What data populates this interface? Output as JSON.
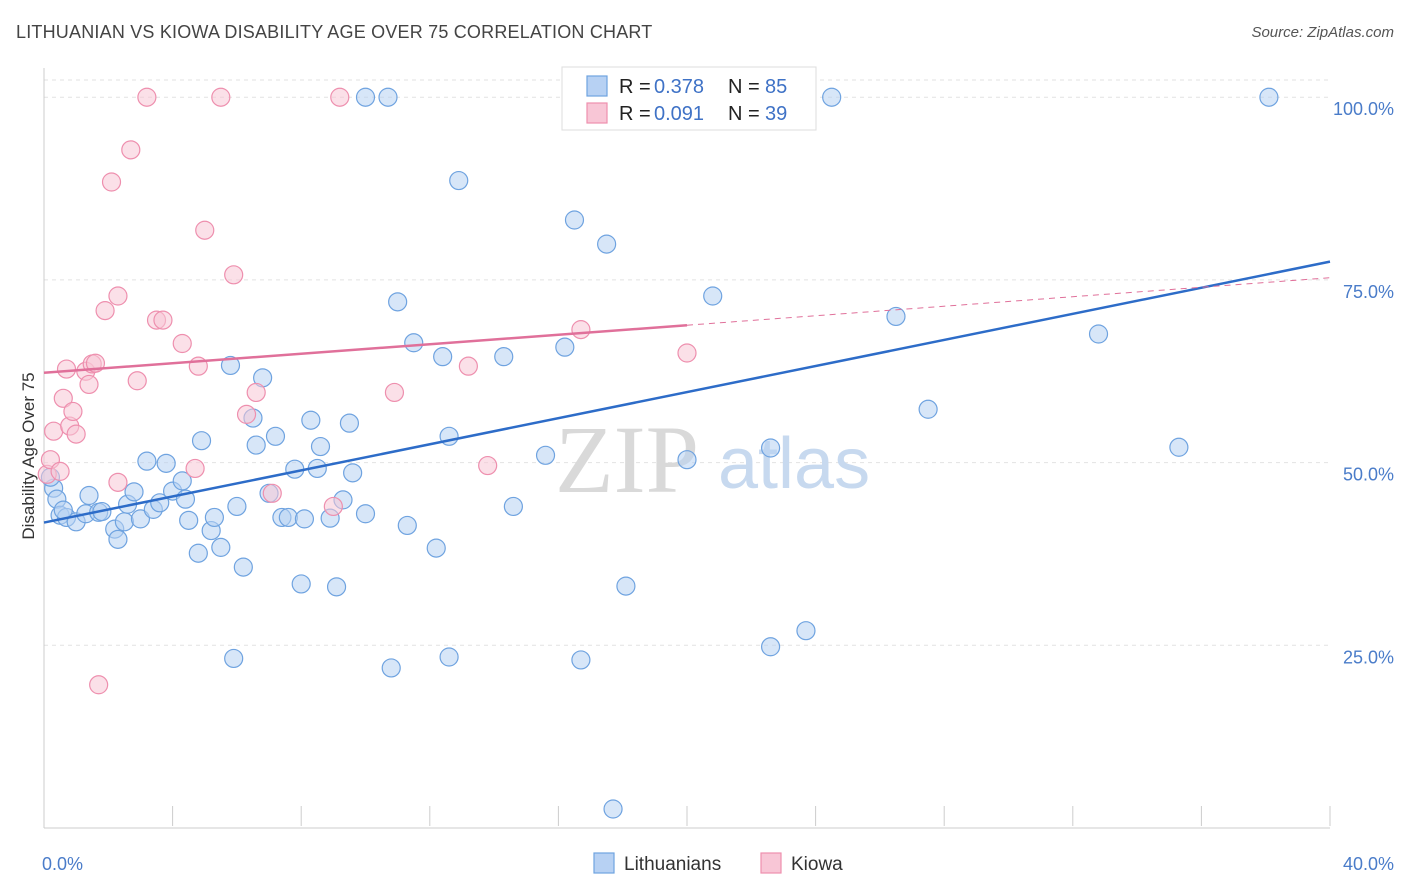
{
  "header": {
    "title": "LITHUANIAN VS KIOWA DISABILITY AGE OVER 75 CORRELATION CHART",
    "source": "Source: ZipAtlas.com"
  },
  "colors": {
    "blue": "#6fa3e0",
    "blue_fill": "#b7d1f3",
    "blue_line": "#2d6cc8",
    "pink": "#ee8fae",
    "pink_fill": "#f8c6d6",
    "pink_line": "#e0709a",
    "axis_text": "#4a7cc9"
  },
  "watermark": {
    "zip": "ZIP",
    "atlas": "atlas"
  },
  "chart_data": {
    "type": "scatter",
    "title": "LITHUANIAN VS KIOWA DISABILITY AGE OVER 75 CORRELATION CHART",
    "xlabel": "",
    "ylabel": "Disability Age Over 75",
    "xlim": [
      0,
      40
    ],
    "ylim": [
      0,
      104
    ],
    "x_tick_labels": [
      "0.0%",
      "40.0%"
    ],
    "y_ticks": [
      25,
      50,
      75,
      100
    ],
    "y_tick_labels": [
      "25.0%",
      "50.0%",
      "75.0%",
      "100.0%"
    ],
    "grid": true,
    "legend_position": "top-center",
    "stats": [
      {
        "r_label": "R = ",
        "r": "0.378",
        "n_label": "N = ",
        "n": "85"
      },
      {
        "r_label": "R = ",
        "r": "0.091",
        "n_label": "N = ",
        "n": "39"
      }
    ],
    "series": [
      {
        "name": "Lithuanians",
        "color": "#6fa3e0",
        "trend": {
          "x0": 0,
          "y0": 41.8,
          "x1": 40,
          "y1": 77.5
        },
        "points": [
          [
            0.3,
            46.5
          ],
          [
            0.4,
            45.0
          ],
          [
            0.5,
            42.8
          ],
          [
            0.7,
            42.5
          ],
          [
            1.0,
            41.9
          ],
          [
            1.3,
            43.0
          ],
          [
            1.4,
            45.5
          ],
          [
            1.7,
            43.2
          ],
          [
            1.8,
            43.3
          ],
          [
            2.2,
            40.9
          ],
          [
            2.3,
            39.5
          ],
          [
            2.5,
            41.9
          ],
          [
            2.6,
            44.3
          ],
          [
            2.8,
            46.0
          ],
          [
            3.0,
            42.3
          ],
          [
            3.2,
            50.2
          ],
          [
            3.4,
            43.6
          ],
          [
            3.6,
            44.5
          ],
          [
            3.8,
            49.9
          ],
          [
            4.0,
            46.1
          ],
          [
            4.3,
            47.5
          ],
          [
            4.4,
            45.0
          ],
          [
            4.5,
            42.1
          ],
          [
            4.8,
            37.6
          ],
          [
            4.9,
            53.0
          ],
          [
            5.2,
            40.7
          ],
          [
            5.3,
            42.5
          ],
          [
            5.5,
            38.4
          ],
          [
            5.8,
            63.3
          ],
          [
            5.9,
            23.2
          ],
          [
            6.0,
            44.0
          ],
          [
            6.2,
            35.7
          ],
          [
            6.5,
            56.1
          ],
          [
            6.6,
            52.4
          ],
          [
            6.8,
            61.6
          ],
          [
            7.0,
            45.8
          ],
          [
            7.2,
            53.6
          ],
          [
            7.4,
            42.5
          ],
          [
            7.6,
            42.5
          ],
          [
            7.8,
            49.1
          ],
          [
            8.0,
            33.4
          ],
          [
            8.1,
            42.3
          ],
          [
            8.3,
            55.8
          ],
          [
            8.5,
            49.2
          ],
          [
            8.6,
            52.2
          ],
          [
            8.9,
            42.4
          ],
          [
            9.1,
            33.0
          ],
          [
            9.3,
            44.9
          ],
          [
            9.5,
            55.4
          ],
          [
            9.6,
            48.6
          ],
          [
            10.0,
            43.0
          ],
          [
            10.0,
            100
          ],
          [
            10.7,
            100
          ],
          [
            10.8,
            21.9
          ],
          [
            11.0,
            72.0
          ],
          [
            11.5,
            66.4
          ],
          [
            11.3,
            41.4
          ],
          [
            12.2,
            38.3
          ],
          [
            12.4,
            64.5
          ],
          [
            12.6,
            53.6
          ],
          [
            12.6,
            23.4
          ],
          [
            12.9,
            88.6
          ],
          [
            14.3,
            64.5
          ],
          [
            14.6,
            44.0
          ],
          [
            15.6,
            51.0
          ],
          [
            16.2,
            65.8
          ],
          [
            16.5,
            83.2
          ],
          [
            16.7,
            23.0
          ],
          [
            17.5,
            79.9
          ],
          [
            17.7,
            2.6
          ],
          [
            18.1,
            33.1
          ],
          [
            20.0,
            50.4
          ],
          [
            20.8,
            72.8
          ],
          [
            22.0,
            100
          ],
          [
            22.6,
            52.0
          ],
          [
            22.6,
            24.8
          ],
          [
            23.7,
            27.0
          ],
          [
            24.5,
            100
          ],
          [
            26.5,
            70.0
          ],
          [
            27.5,
            57.3
          ],
          [
            32.8,
            67.6
          ],
          [
            35.3,
            52.1
          ],
          [
            38.1,
            100
          ],
          [
            0.2,
            48.0
          ],
          [
            0.6,
            43.5
          ]
        ]
      },
      {
        "name": "Kiowa",
        "color": "#ee8fae",
        "trend": {
          "x0": 0,
          "y0": 62.3,
          "x1": 20,
          "y1": 68.8
        },
        "trend_dashed": {
          "x0": 20,
          "y0": 68.8,
          "x1": 40,
          "y1": 75.3
        },
        "points": [
          [
            0.1,
            48.4
          ],
          [
            0.2,
            50.4
          ],
          [
            0.3,
            54.3
          ],
          [
            0.5,
            48.8
          ],
          [
            0.6,
            58.8
          ],
          [
            0.7,
            62.8
          ],
          [
            0.8,
            55.0
          ],
          [
            0.9,
            57.0
          ],
          [
            1.0,
            53.9
          ],
          [
            1.3,
            62.5
          ],
          [
            1.4,
            60.7
          ],
          [
            1.5,
            63.5
          ],
          [
            1.6,
            63.6
          ],
          [
            1.7,
            19.6
          ],
          [
            1.9,
            70.8
          ],
          [
            2.1,
            88.4
          ],
          [
            2.3,
            72.8
          ],
          [
            2.3,
            47.3
          ],
          [
            2.7,
            92.8
          ],
          [
            2.9,
            61.2
          ],
          [
            3.2,
            100
          ],
          [
            3.5,
            69.5
          ],
          [
            3.7,
            69.5
          ],
          [
            4.3,
            66.3
          ],
          [
            4.7,
            49.2
          ],
          [
            4.8,
            63.2
          ],
          [
            5.0,
            81.8
          ],
          [
            5.5,
            100
          ],
          [
            5.9,
            75.7
          ],
          [
            6.3,
            56.6
          ],
          [
            6.6,
            59.6
          ],
          [
            7.1,
            45.8
          ],
          [
            9.0,
            44.0
          ],
          [
            9.2,
            100
          ],
          [
            10.9,
            59.6
          ],
          [
            13.2,
            63.2
          ],
          [
            13.8,
            49.6
          ],
          [
            16.7,
            68.2
          ],
          [
            20.0,
            65.0
          ]
        ]
      }
    ]
  }
}
